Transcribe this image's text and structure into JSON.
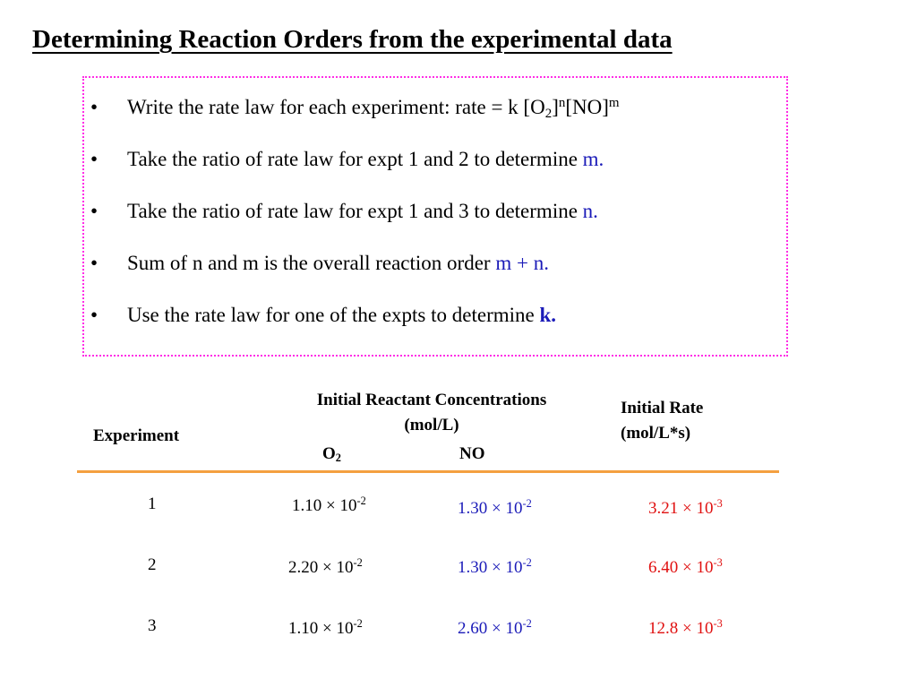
{
  "title": "Determining Reaction Orders from the experimental data",
  "bullets": [
    {
      "text_a": "Write the rate law for each experiment: rate = k [O",
      "sub": "2",
      "text_b": "]",
      "sup1": "n",
      "text_c": "[NO]",
      "sup2": "m"
    },
    {
      "text": "Take the ratio of rate law for expt 1 and 2 to determine ",
      "highlight": "m."
    },
    {
      "text": "Take the ratio of rate law for expt 1 and 3 to determine ",
      "highlight": "n."
    },
    {
      "text": "Sum of n and m is the overall reaction order ",
      "highlight": "m + n."
    },
    {
      "text": "Use the rate law for one of the expts to determine ",
      "highlight": "k."
    }
  ],
  "table": {
    "header_group": "Initial Reactant Concentrations",
    "header_group_unit": "(mol/L)",
    "col_experiment": "Experiment",
    "col_o2": "O",
    "col_o2_sub": "2",
    "col_no": "NO",
    "col_rate": "Initial Rate",
    "col_rate_unit": "(mol/L*s)",
    "rows": [
      {
        "exp": "1",
        "o2_mant": "1.10 × 10",
        "o2_exp": "-2",
        "no_mant": "1.30 × 10",
        "no_exp": "-2",
        "rate_mant": "3.21 × 10",
        "rate_exp": "-3"
      },
      {
        "exp": "2",
        "o2_mant": "2.20 × 10",
        "o2_exp": "-2",
        "no_mant": "1.30 × 10",
        "no_exp": "-2",
        "rate_mant": "6.40 × 10",
        "rate_exp": "-3"
      },
      {
        "exp": "3",
        "o2_mant": "1.10 × 10",
        "o2_exp": "-2",
        "no_mant": "2.60 × 10",
        "no_exp": "-2",
        "rate_mant": "12.8 × 10",
        "rate_exp": "-3"
      }
    ]
  },
  "colors": {
    "box_border": "#ff2ee6",
    "divider": "#f4a040",
    "blue": "#1a1ab8",
    "red": "#e01010"
  }
}
